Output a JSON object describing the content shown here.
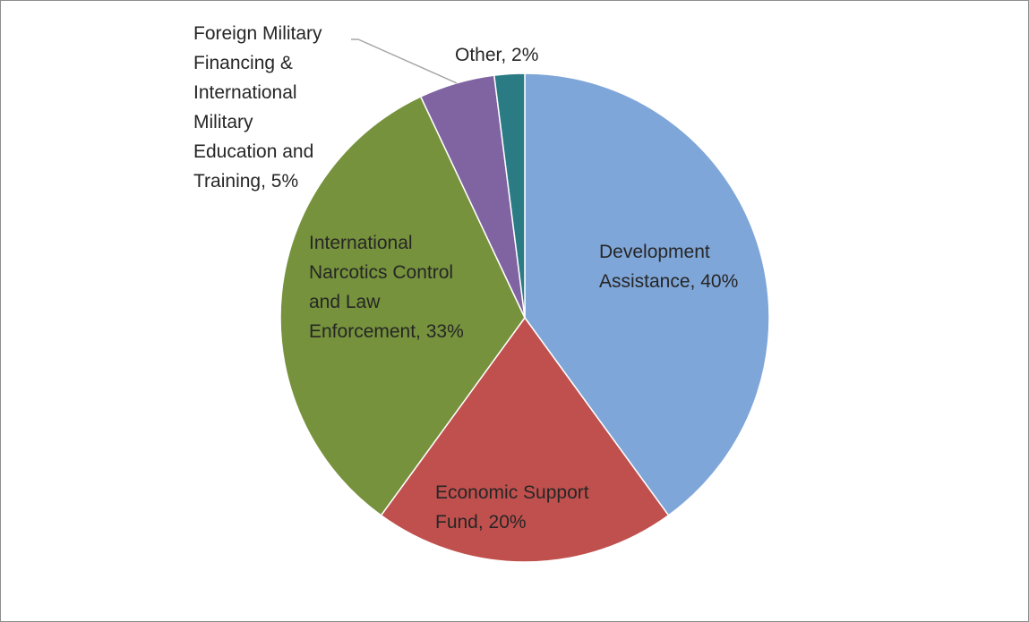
{
  "chart_data": {
    "type": "pie",
    "title": "",
    "slices": [
      {
        "name": "Development Assistance",
        "value": 40,
        "color": "#7fa6d8",
        "label_lines": [
          "Development",
          "Assistance, 40%"
        ]
      },
      {
        "name": "Economic Support Fund",
        "value": 20,
        "color": "#c0504d",
        "label_lines": [
          "Economic Support",
          "Fund, 20%"
        ]
      },
      {
        "name": "International Narcotics Control and Law Enforcement",
        "value": 33,
        "color": "#76923c",
        "label_lines": [
          "International",
          "Narcotics Control",
          "and Law",
          "Enforcement, 33%"
        ]
      },
      {
        "name": "Foreign Military Financing & International Military Education and Training",
        "value": 5,
        "color": "#8064a2",
        "label_lines": [
          "Foreign Military",
          "Financing &",
          "International",
          "Military",
          "Education and",
          "Training, 5%"
        ]
      },
      {
        "name": "Other",
        "value": 2,
        "color": "#2b7b84",
        "label_lines": [
          "Other, 2%"
        ]
      }
    ],
    "leader_line_color": "#a6a6a6"
  }
}
